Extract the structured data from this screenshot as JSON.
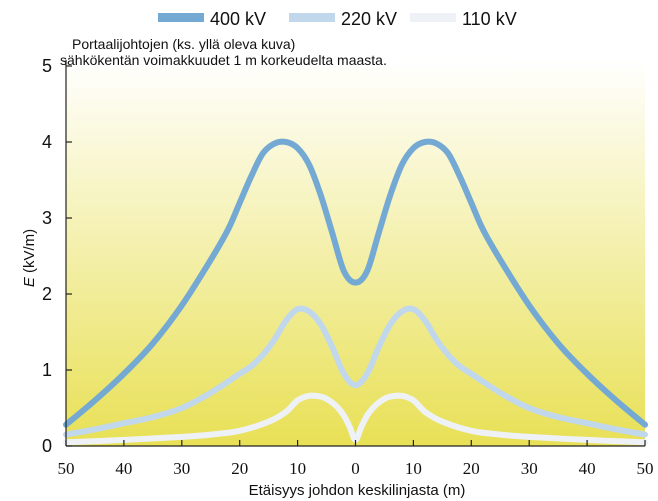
{
  "chart_data": {
    "type": "line",
    "annotation": [
      "Portaalijohtojen (ks. yllä oleva kuva)",
      "sähkökentän voimakkuudet 1 m korkeudelta maasta."
    ],
    "ylabel_italic": "E",
    "ylabel_unit": " (kV/m)",
    "xlabel": "Etäisyys johdon keskilinjasta (m)",
    "ylim": [
      0,
      5
    ],
    "xlim": [
      -50,
      50
    ],
    "yticks": [
      0,
      1,
      2,
      3,
      4,
      5
    ],
    "xticks": [
      -50,
      -40,
      -30,
      -20,
      -10,
      0,
      10,
      20,
      30,
      40,
      50
    ],
    "xtick_labels": [
      "50",
      "40",
      "30",
      "20",
      "10",
      "0",
      "10",
      "20",
      "30",
      "40",
      "50"
    ],
    "legend_position": "top",
    "grid": false,
    "background": {
      "top": "#ffffff",
      "bottom": "#e8e055"
    },
    "series": [
      {
        "name": "400 kV",
        "color": "#74a9d4",
        "x": [
          0,
          2,
          4,
          6,
          8,
          10,
          12,
          14,
          16,
          18,
          20,
          22,
          25,
          30,
          35,
          40,
          45,
          50
        ],
        "values": [
          2.15,
          2.3,
          2.8,
          3.3,
          3.7,
          3.92,
          4.0,
          3.98,
          3.85,
          3.55,
          3.2,
          2.85,
          2.45,
          1.85,
          1.35,
          0.95,
          0.6,
          0.28
        ]
      },
      {
        "name": "220 kV",
        "color": "#c1d8ec",
        "x": [
          0,
          2,
          4,
          6,
          8,
          10,
          12,
          14,
          16,
          18,
          20,
          25,
          30,
          35,
          40,
          45,
          50
        ],
        "values": [
          0.8,
          0.95,
          1.3,
          1.6,
          1.77,
          1.8,
          1.65,
          1.4,
          1.2,
          1.05,
          0.95,
          0.7,
          0.5,
          0.38,
          0.3,
          0.22,
          0.15
        ]
      },
      {
        "name": "110 kV",
        "color": "#eef2f6",
        "x": [
          0,
          1,
          2,
          3,
          4,
          5,
          6,
          8,
          10,
          12,
          15,
          20,
          25,
          30,
          40,
          50
        ],
        "values": [
          0.08,
          0.25,
          0.4,
          0.5,
          0.57,
          0.62,
          0.65,
          0.66,
          0.6,
          0.45,
          0.32,
          0.2,
          0.15,
          0.12,
          0.08,
          0.05
        ]
      }
    ]
  }
}
